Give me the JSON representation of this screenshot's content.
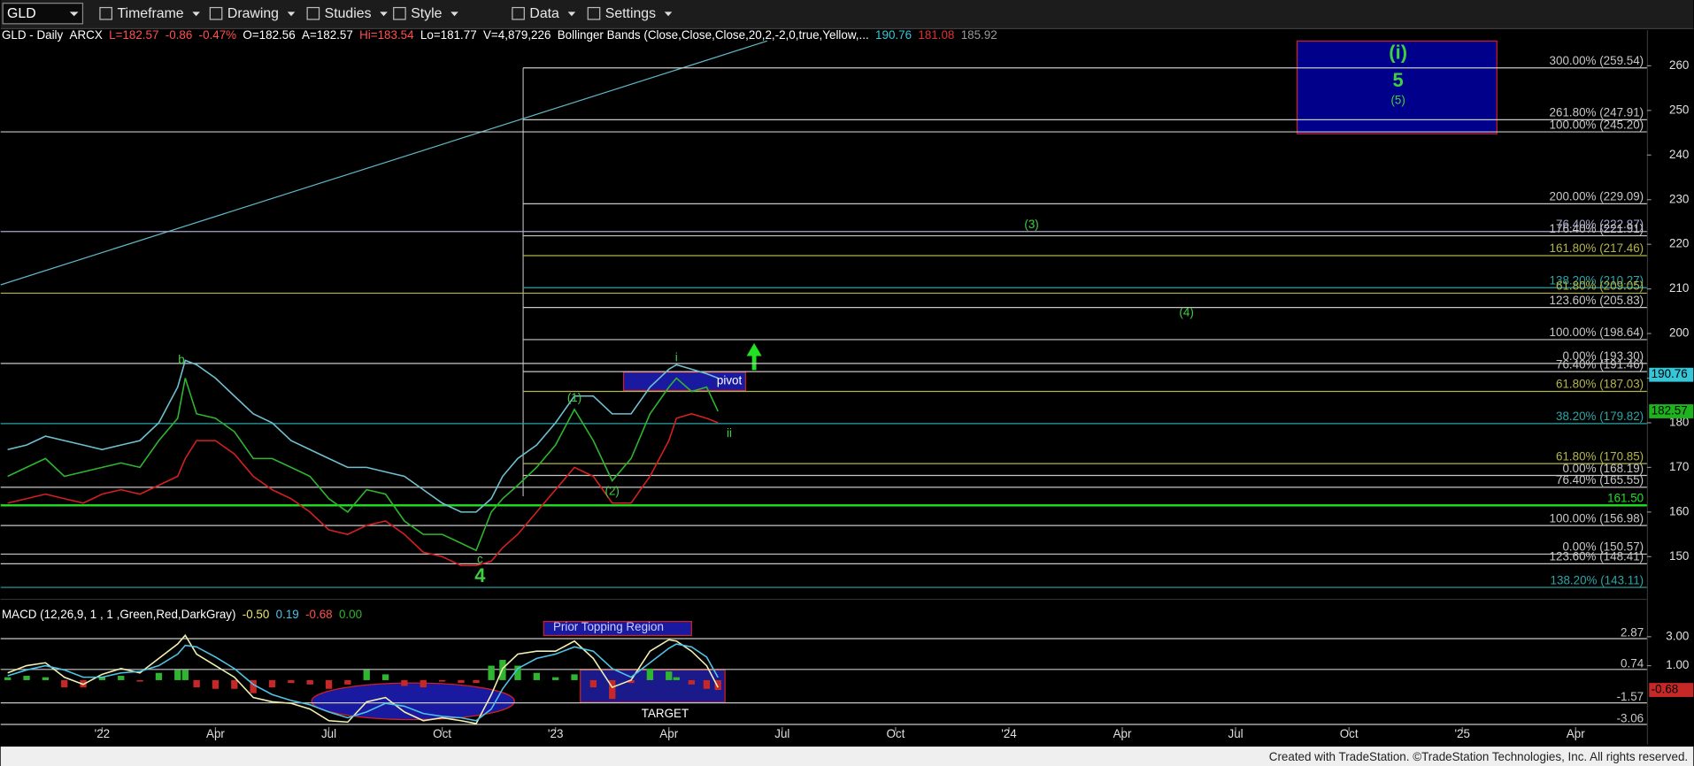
{
  "toolbar": {
    "symbol": "GLD",
    "items": [
      "Timeframe",
      "Drawing",
      "Studies",
      "Style",
      "Data",
      "Settings"
    ]
  },
  "footer": "Created with TradeStation. ©TradeStation Technologies, Inc. All rights reserved.",
  "chart_data": [
    {
      "type": "line",
      "header": [
        {
          "text": "GLD - Daily",
          "color": "#ffffff"
        },
        {
          "text": "ARCX",
          "color": "#ffffff"
        },
        {
          "text": "L=182.57",
          "color": "#ff5050"
        },
        {
          "text": "-0.86",
          "color": "#ff5050"
        },
        {
          "text": "-0.47%",
          "color": "#ff5050"
        },
        {
          "text": "O=182.56",
          "color": "#ffffff"
        },
        {
          "text": "A=182.57",
          "color": "#ffffff"
        },
        {
          "text": "Hi=183.54",
          "color": "#ff5050"
        },
        {
          "text": "Lo=181.77",
          "color": "#ffffff"
        },
        {
          "text": "V=4,879,226",
          "color": "#ffffff"
        },
        {
          "text": "Bollinger Bands (Close,Close,Close,20,2,-2,0,true,Yellow,...",
          "color": "#ffffff"
        },
        {
          "text": "190.76",
          "color": "#35c6d8"
        },
        {
          "text": "181.08",
          "color": "#e03030"
        },
        {
          "text": "185.92",
          "color": "#9a9a9a"
        }
      ],
      "x": [
        -2.5,
        -2,
        -1.5,
        -1,
        -0.5,
        0,
        0.5,
        1,
        1.5,
        2,
        2.2,
        2.5,
        3,
        3.5,
        4,
        4.5,
        5,
        5.5,
        6,
        6.5,
        7,
        7.5,
        8,
        8.5,
        9,
        9.5,
        9.9,
        10.3,
        10.6,
        11,
        11.5,
        12,
        12.5,
        13,
        13.5,
        14,
        14.5,
        15,
        15.2,
        15.6,
        16,
        16.3
      ],
      "series": [
        {
          "color": "#2fb52f",
          "values": [
            168,
            170,
            172,
            168,
            169,
            170,
            171,
            170,
            176,
            181,
            190,
            182,
            181,
            178,
            172,
            172,
            170,
            168,
            163,
            160,
            165,
            164,
            158,
            155,
            155,
            153,
            151.4,
            160,
            163,
            166,
            170,
            175,
            183,
            176,
            167,
            172,
            182,
            188,
            190,
            187,
            188,
            182.57
          ]
        },
        {
          "color": "#6fc0d0",
          "values": [
            174,
            175,
            177,
            176,
            175,
            174,
            175,
            176,
            180,
            188,
            194,
            193,
            190,
            186,
            182,
            180,
            176,
            174,
            172,
            170,
            170,
            169,
            168,
            165,
            162,
            160,
            160,
            163,
            168,
            172,
            175,
            180,
            186,
            186,
            182,
            182,
            188,
            192,
            193,
            192,
            191,
            190
          ]
        },
        {
          "color": "#d42020",
          "values": [
            162,
            163,
            164,
            163,
            162,
            164,
            165,
            164,
            166,
            168,
            172,
            176,
            176,
            173,
            168,
            165,
            163,
            160,
            156,
            155,
            157,
            158,
            155,
            151,
            150,
            148,
            148,
            149,
            152,
            155,
            160,
            165,
            170,
            168,
            162,
            162,
            168,
            176,
            181,
            182,
            181,
            180
          ]
        }
      ],
      "xlim": [
        -2.686,
        40.886
      ],
      "ylim": [
        142.25,
        265.56
      ],
      "yticks": [
        150,
        160,
        170,
        180,
        190,
        200,
        210,
        220,
        230,
        240,
        250,
        260
      ],
      "xticks": [
        {
          "value": 0,
          "label": "'22"
        },
        {
          "value": 3,
          "label": "Apr"
        },
        {
          "value": 6,
          "label": "Jul"
        },
        {
          "value": 9,
          "label": "Oct"
        },
        {
          "value": 12,
          "label": "'23"
        },
        {
          "value": 15,
          "label": "Apr"
        },
        {
          "value": 18,
          "label": "Jul"
        },
        {
          "value": 21,
          "label": "Oct"
        },
        {
          "value": 24,
          "label": "'24"
        },
        {
          "value": 27,
          "label": "Apr"
        },
        {
          "value": 30,
          "label": "Jul"
        },
        {
          "value": 33,
          "label": "Oct"
        },
        {
          "value": 36,
          "label": "'25"
        },
        {
          "value": 39,
          "label": "Apr"
        }
      ],
      "levels": [
        {
          "label": "300.00% (259.54)",
          "value": 259.54,
          "x0": 11.14,
          "color": "#c8c8c8"
        },
        {
          "label": "261.80% (247.91)",
          "value": 247.91,
          "x0": 11.14,
          "color": "#c8c8c8"
        },
        {
          "label": "100.00% (245.20)",
          "value": 245.2,
          "x0": -2.686,
          "color": "#c8c8c8"
        },
        {
          "label": "200.00% (229.09)",
          "value": 229.09,
          "x0": 11.14,
          "color": "#c8c8c8"
        },
        {
          "label": "76.40% (222.87)",
          "value": 222.87,
          "x0": -2.686,
          "color": "#a8a8d0"
        },
        {
          "label": "176.40% (221.91)",
          "value": 221.91,
          "x0": 11.14,
          "color": "#c8c8c8"
        },
        {
          "label": "161.80% (217.46)",
          "value": 217.46,
          "x0": 11.14,
          "color": "#b5b54a"
        },
        {
          "label": "138.20% (210.27)",
          "value": 210.27,
          "x0": 11.14,
          "color": "#2aa6a6"
        },
        {
          "label": "61.80% (209.05)",
          "value": 209.05,
          "x0": -2.686,
          "color": "#b5b54a"
        },
        {
          "label": "123.60% (205.83)",
          "value": 205.83,
          "x0": 11.14,
          "color": "#c8c8c8"
        },
        {
          "label": "100.00% (198.64)",
          "value": 198.64,
          "x0": 11.14,
          "color": "#c8c8c8"
        },
        {
          "label": "0.00% (193.30)",
          "value": 193.3,
          "x0": -2.686,
          "color": "#c8c8c8"
        },
        {
          "label": "76.40% (191.46)",
          "value": 191.46,
          "x0": 11.14,
          "color": "#c8c8c8"
        },
        {
          "label": "61.80% (187.03)",
          "value": 187.03,
          "x0": 11.14,
          "color": "#b5b54a"
        },
        {
          "label": "38.20% (179.82)",
          "value": 179.82,
          "x0": -2.686,
          "color": "#2aa6a6"
        },
        {
          "label": "61.80% (170.85)",
          "value": 170.85,
          "x0": 11.14,
          "color": "#b5b54a"
        },
        {
          "label": "0.00% (168.19)",
          "value": 168.19,
          "x0": 11.14,
          "color": "#c8c8c8"
        },
        {
          "label": "76.40% (165.55)",
          "value": 165.55,
          "x0": -2.686,
          "color": "#c8c8c8"
        },
        {
          "label": "161.50",
          "value": 161.5,
          "x0": -2.686,
          "color": "#22e022"
        },
        {
          "label": "100.00% (156.98)",
          "value": 156.98,
          "x0": -2.686,
          "color": "#c8c8c8"
        },
        {
          "label": "0.00% (150.57)",
          "value": 150.57,
          "x0": -2.686,
          "color": "#c8c8c8"
        },
        {
          "label": "123.60% (148.41)",
          "value": 148.41,
          "x0": -2.686,
          "color": "#c8c8c8"
        },
        {
          "label": "138.20% (143.11)",
          "value": 143.11,
          "x0": -2.686,
          "color": "#2aa6a6"
        }
      ],
      "last_values": [
        {
          "value": 190.76,
          "color": "#35c6d8"
        },
        {
          "value": 182.57,
          "color": "#1db31d"
        }
      ],
      "annotations": [
        {
          "text": "b",
          "x": 2.1,
          "y": 194,
          "color": "#3fd03f"
        },
        {
          "text": "(1)",
          "x": 12.5,
          "y": 185.5,
          "color": "#3fd03f"
        },
        {
          "text": "(2)",
          "x": 13.5,
          "y": 164.5,
          "color": "#3fd03f"
        },
        {
          "text": "i",
          "x": 15.2,
          "y": 194.5,
          "color": "#3fd03f"
        },
        {
          "text": "ii",
          "x": 16.6,
          "y": 177.5,
          "color": "#3fd03f"
        },
        {
          "text": "c",
          "x": 10.0,
          "y": 149.3,
          "color": "#3fd03f"
        },
        {
          "text": "4",
          "x": 10.0,
          "y": 145.5,
          "color": "#3fd03f",
          "big": true
        },
        {
          "text": "(3)",
          "x": 24.6,
          "y": 224.3,
          "color": "#3fd03f"
        },
        {
          "text": "(4)",
          "x": 28.7,
          "y": 204.6,
          "color": "#3fd03f"
        },
        {
          "text": "pivot",
          "x": 16.6,
          "y": 189.3,
          "color": "#ffffff"
        },
        {
          "text": "(i)",
          "x": 34.3,
          "y": 262.7,
          "color": "#3fd03f",
          "big": true
        },
        {
          "text": "5",
          "x": 34.3,
          "y": 256.5,
          "color": "#3fd03f",
          "big": true
        },
        {
          "text": "(5)",
          "x": 34.3,
          "y": 252.2,
          "color": "#3fd03f"
        }
      ]
    },
    {
      "type": "line",
      "header": [
        {
          "text": "MACD (12,26,9, 1 , 1 ,Green,Red,DarkGray)",
          "color": "#ffffff"
        },
        {
          "text": "-0.50",
          "color": "#e8e86a"
        },
        {
          "text": "0.19",
          "color": "#4fc3e8"
        },
        {
          "text": "-0.68",
          "color": "#ff5050"
        },
        {
          "text": "0.00",
          "color": "#2fb52f"
        }
      ],
      "xlim": [
        -2.686,
        40.886
      ],
      "ylim": [
        -3.1,
        5.1
      ],
      "yticks": [
        {
          "value": 1,
          "label": "1.00"
        },
        {
          "value": 3,
          "label": "3.00"
        }
      ],
      "levels": [
        2.87,
        0.74,
        -1.57,
        -3.06
      ],
      "level_color": "#c8c8c8",
      "series": [
        {
          "type": "bar",
          "color": "#2fb52f",
          "negative_color": "#c62828",
          "values": [
            0.2,
            0.3,
            0.2,
            -0.5,
            -0.5,
            0.2,
            0.3,
            -0.1,
            0.5,
            0.7,
            0.7,
            -0.5,
            -0.6,
            -0.6,
            -0.9,
            -0.5,
            -0.2,
            -0.3,
            -0.6,
            -0.3,
            0.7,
            0.4,
            -0.4,
            -0.5,
            -0.1,
            -0.2,
            -0.2,
            1.0,
            1.4,
            1.0,
            0.5,
            0.2,
            0.4,
            -0.5,
            -1.3,
            -0.2,
            0.8,
            0.6,
            0.2,
            -0.3,
            -0.6,
            -0.68
          ]
        },
        {
          "type": "line",
          "color": "#f0f0b0",
          "values": [
            0.5,
            1.0,
            1.2,
            0.2,
            -0.3,
            0.4,
            0.8,
            0.5,
            1.5,
            2.5,
            3.1,
            1.8,
            1.0,
            0.2,
            -1.2,
            -1.5,
            -1.6,
            -2.0,
            -2.8,
            -2.9,
            -1.5,
            -1.2,
            -2.2,
            -2.8,
            -2.6,
            -2.8,
            -3.0,
            -1.0,
            0.8,
            1.8,
            2.0,
            2.0,
            2.7,
            1.5,
            -0.5,
            0.0,
            2.0,
            2.8,
            2.7,
            2.0,
            1.0,
            -0.5
          ]
        },
        {
          "type": "line",
          "color": "#4fc3e8",
          "values": [
            0.3,
            0.7,
            1.0,
            0.7,
            0.2,
            0.2,
            0.5,
            0.6,
            1.0,
            1.8,
            2.4,
            2.3,
            1.6,
            0.8,
            -0.3,
            -1.0,
            -1.4,
            -1.7,
            -2.2,
            -2.6,
            -2.2,
            -1.6,
            -1.8,
            -2.3,
            -2.5,
            -2.6,
            -2.8,
            -2.0,
            -0.6,
            0.8,
            1.5,
            1.8,
            2.3,
            2.0,
            0.8,
            0.2,
            1.2,
            2.2,
            2.5,
            2.3,
            1.6,
            0.19
          ]
        }
      ],
      "last_values": [
        {
          "value": -0.68,
          "color": "#c62828"
        }
      ],
      "annotations": [
        {
          "text": "Prior Topping Region",
          "x": 13.4,
          "y": 3.65,
          "color": "#c8d0ff"
        },
        {
          "text": "TARGET",
          "x": 14.9,
          "y": -2.35,
          "color": "#ffffff"
        }
      ]
    }
  ]
}
